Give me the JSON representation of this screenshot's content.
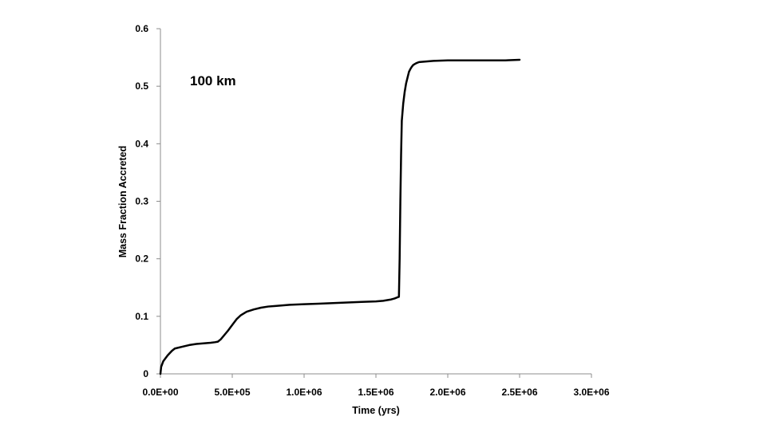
{
  "chart_data": {
    "type": "line",
    "xlabel": "Time (yrs)",
    "ylabel": "Mass Fraction Accreted",
    "annotation": "100 km",
    "xlim": [
      0,
      3000000
    ],
    "ylim": [
      0,
      0.6
    ],
    "x_ticks": [
      0,
      500000,
      1000000,
      1500000,
      2000000,
      2500000,
      3000000
    ],
    "x_tick_labels": [
      "0.0E+00",
      "5.0E+05",
      "1.0E+06",
      "1.5E+06",
      "2.0E+06",
      "2.5E+06",
      "3.0E+06"
    ],
    "y_ticks": [
      0,
      0.1,
      0.2,
      0.3,
      0.4,
      0.5,
      0.6
    ],
    "y_tick_labels": [
      "0",
      "0.1",
      "0.2",
      "0.3",
      "0.4",
      "0.5",
      "0.6"
    ],
    "grid": false,
    "series": [
      {
        "color": "#000000",
        "x": [
          0,
          5000,
          20000,
          50000,
          80000,
          100000,
          150000,
          200000,
          250000,
          300000,
          350000,
          380000,
          400000,
          420000,
          440000,
          470000,
          500000,
          530000,
          560000,
          600000,
          650000,
          700000,
          750000,
          800000,
          900000,
          1000000,
          1100000,
          1200000,
          1300000,
          1400000,
          1500000,
          1550000,
          1600000,
          1630000,
          1650000,
          1660000,
          1665000,
          1670000,
          1675000,
          1680000,
          1690000,
          1700000,
          1710000,
          1720000,
          1730000,
          1740000,
          1750000,
          1760000,
          1780000,
          1800000,
          1850000,
          1900000,
          2000000,
          2100000,
          2200000,
          2300000,
          2400000,
          2500000
        ],
        "y": [
          0,
          0.012,
          0.022,
          0.032,
          0.04,
          0.044,
          0.047,
          0.05,
          0.052,
          0.053,
          0.054,
          0.055,
          0.056,
          0.06,
          0.066,
          0.075,
          0.085,
          0.095,
          0.102,
          0.108,
          0.112,
          0.115,
          0.117,
          0.118,
          0.12,
          0.121,
          0.122,
          0.123,
          0.124,
          0.125,
          0.126,
          0.127,
          0.129,
          0.131,
          0.133,
          0.134,
          0.2,
          0.3,
          0.38,
          0.44,
          0.47,
          0.49,
          0.505,
          0.515,
          0.525,
          0.53,
          0.534,
          0.537,
          0.54,
          0.542,
          0.543,
          0.544,
          0.545,
          0.545,
          0.545,
          0.545,
          0.545,
          0.546
        ]
      }
    ]
  }
}
